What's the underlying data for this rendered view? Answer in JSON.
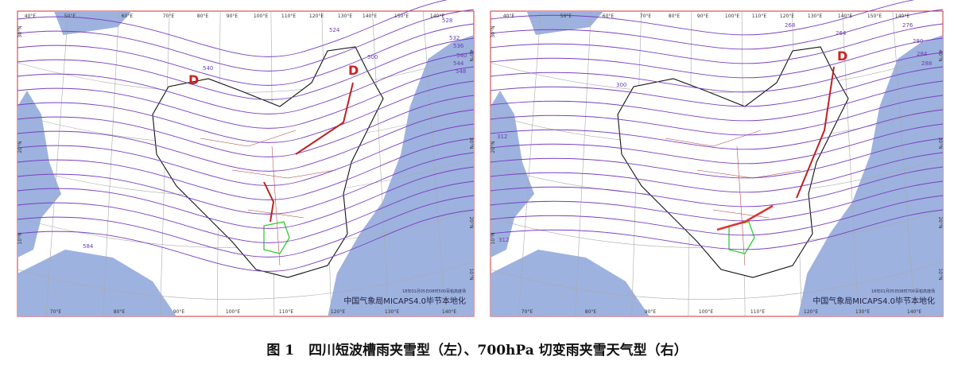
{
  "panels": [
    {
      "top_ticks": [
        "40°E",
        "50°E",
        "60°E",
        "70°E",
        "80°E",
        "90°E",
        "100°E",
        "110°E",
        "120°E",
        "130°E",
        "140°E",
        "150°E",
        "140°E"
      ],
      "bottom_ticks": [
        "70°E",
        "80°E",
        "90°E",
        "100°E",
        "110°E",
        "120°E",
        "130°E",
        "140°E"
      ],
      "left_ticks": [
        "30°N",
        "20°N",
        "10°N"
      ],
      "right_ticks": [
        "40°N",
        "30°N",
        "20°N",
        "10°N"
      ],
      "contour_labels": [
        "524",
        "528",
        "532",
        "536",
        "540",
        "544",
        "548",
        "500",
        "540",
        "584"
      ],
      "lows": [
        "D",
        "D"
      ],
      "timestamp": "18年01月05日08时500百帕高度场",
      "credit": "中国气象局MICAPS4.0毕节本地化"
    },
    {
      "top_ticks": [
        "40°E",
        "50°E",
        "60°E",
        "70°E",
        "80°E",
        "90°E",
        "100°E",
        "110°E",
        "120°E",
        "130°E",
        "140°E",
        "150°E",
        "140°E"
      ],
      "bottom_ticks": [
        "70°E",
        "80°E",
        "90°E",
        "100°E",
        "110°E",
        "120°E",
        "130°E",
        "140°E"
      ],
      "left_ticks": [
        "30°N",
        "20°N",
        "10°N"
      ],
      "right_ticks": [
        "40°N",
        "30°N",
        "20°N",
        "10°N"
      ],
      "contour_labels": [
        "268",
        "264",
        "276",
        "280",
        "284",
        "288",
        "300",
        "312",
        "312"
      ],
      "lows": [
        "D"
      ],
      "timestamp": "18年01月05日08时700百帕高度场",
      "credit": "中国气象局MICAPS4.0毕节本地化"
    }
  ],
  "caption": {
    "label": "图 1",
    "text": "四川短波槽雨夹雪型（左）、700hPa 切变雨夹雪天气型（右）"
  }
}
